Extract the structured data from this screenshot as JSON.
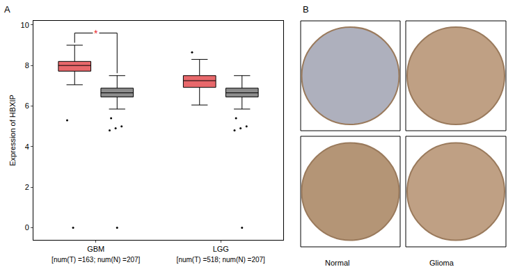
{
  "chart_data": {
    "type": "box",
    "panel_label": "A",
    "ylabel": "Expression of HBXIP",
    "categories": [
      "GBM",
      "LGG"
    ],
    "category_notes": [
      "[num(T) =163; num(N) =207]",
      "[num(T) =518; num(N) =207]"
    ],
    "ylim": [
      -0.6,
      10.2
    ],
    "yticks": [
      0,
      2,
      4,
      6,
      8,
      10
    ],
    "grid": false,
    "series": [
      {
        "name": "T",
        "color": "#e8686b",
        "q1": [
          7.72,
          6.92
        ],
        "median": [
          8.0,
          7.25
        ],
        "q3": [
          8.2,
          7.5
        ],
        "lowerfence": [
          7.05,
          6.05
        ],
        "upperfence": [
          9.0,
          8.3
        ],
        "outliers": [
          [
            5.3,
            0
          ],
          [
            8.65
          ]
        ]
      },
      {
        "name": "N",
        "color": "#8c8c8c",
        "q1": [
          6.45,
          6.45
        ],
        "median": [
          6.65,
          6.65
        ],
        "q3": [
          6.88,
          6.88
        ],
        "lowerfence": [
          5.85,
          5.85
        ],
        "upperfence": [
          7.5,
          7.5
        ],
        "outliers": [
          [
            4.8,
            4.9,
            5.0,
            5.4,
            0
          ],
          [
            4.8,
            4.9,
            5.0,
            5.4,
            0
          ]
        ]
      }
    ],
    "significance": [
      {
        "category": "GBM",
        "label": "*",
        "color": "#e8262a"
      }
    ]
  },
  "images": {
    "panel_label": "B",
    "labels": [
      "Normal",
      "Glioma"
    ]
  }
}
